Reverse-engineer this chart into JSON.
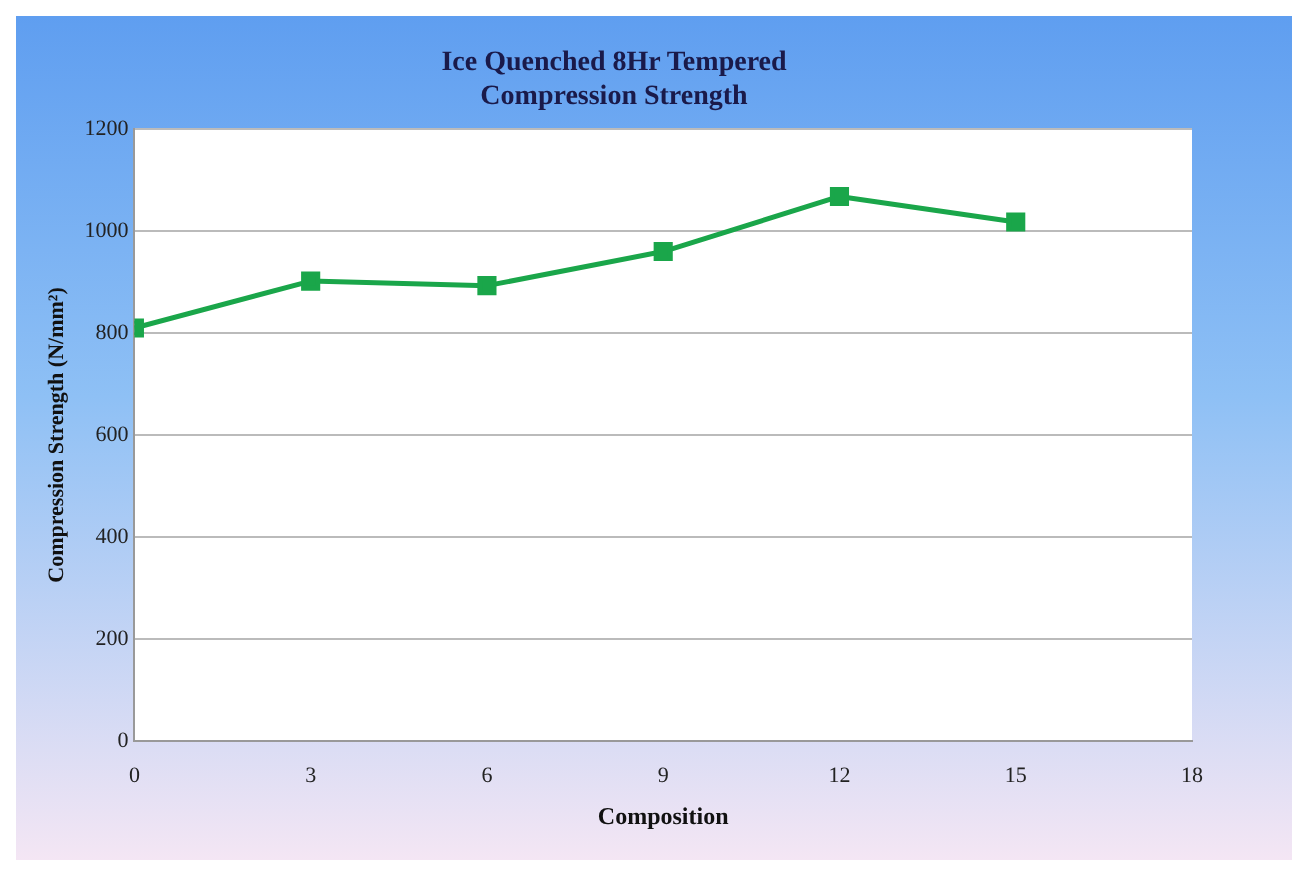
{
  "chart_data": {
    "type": "line",
    "title": "Ice Quenched 8Hr Tempered\nCompression Strength",
    "xlabel": "Composition",
    "ylabel": "Compression Strength (N/mm²)",
    "x": [
      0,
      3,
      6,
      9,
      12,
      15
    ],
    "series": [
      {
        "color": "#1aa64a",
        "values": [
          810,
          902,
          893,
          960,
          1068,
          1018
        ]
      }
    ],
    "xlim": [
      0,
      18
    ],
    "xticks": [
      0,
      3,
      6,
      9,
      12,
      15,
      18
    ],
    "ylim": [
      0,
      1200
    ],
    "yticks": [
      0,
      200,
      400,
      600,
      800,
      1000,
      1200
    ],
    "grid": "y",
    "legend": false,
    "marker": "square",
    "line_style": "solid"
  }
}
